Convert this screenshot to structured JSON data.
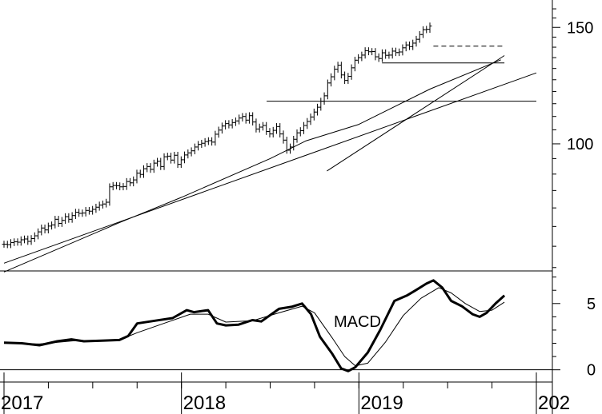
{
  "chart_data": [
    {
      "type": "ohlc",
      "title": "",
      "x_range": [
        2017.0,
        2020.0
      ],
      "y_scale": "log",
      "ylim": [
        63,
        165
      ],
      "y_ticks": [
        {
          "value": 100,
          "label": "100"
        },
        {
          "value": 150,
          "label": "150"
        }
      ],
      "series": [
        {
          "role": "price_bars",
          "x_start": 2017.0,
          "x_step": 0.0192,
          "closes": [
            70.5,
            70.4,
            70.9,
            71.1,
            71.0,
            71.6,
            71.8,
            71.2,
            71.9,
            72.6,
            73.6,
            74.6,
            74.1,
            75.1,
            75.4,
            76.9,
            75.8,
            76.6,
            77.6,
            76.9,
            77.9,
            78.8,
            78.5,
            78.6,
            79.3,
            79.1,
            79.6,
            80.2,
            80.8,
            81.1,
            81.6,
            86.1,
            86.5,
            86.4,
            86.1,
            86.2,
            87.7,
            87.3,
            88.2,
            90.3,
            89.9,
            91.7,
            92.4,
            91.5,
            93.5,
            94.1,
            92.4,
            95.6,
            95.8,
            94.5,
            96.1,
            93.1,
            94.6,
            96.2,
            96.9,
            97.6,
            98.9,
            99.8,
            100.2,
            100.8,
            101.1,
            100.6,
            103.4,
            104.9,
            106.4,
            107.3,
            106.8,
            107.7,
            108.3,
            109.4,
            110.0,
            108.6,
            110.3,
            107.9,
            105.3,
            106.0,
            106.6,
            104.4,
            103.5,
            104.8,
            106.2,
            103.5,
            101.3,
            97.8,
            98.9,
            101.6,
            103.9,
            104.7,
            106.6,
            108.1,
            109.8,
            111.7,
            113.6,
            116.0,
            118.2,
            123.6,
            126.3,
            129.7,
            131.5,
            127.1,
            124.7,
            126.5,
            130.3,
            133.8,
            135.0,
            136.2,
            138.3,
            137.8,
            137.9,
            135.4,
            134.6,
            137.3,
            136.1,
            136.2,
            138.1,
            137.4,
            137.7,
            139.7,
            141.1,
            140.3,
            142.0,
            143.9,
            146.3,
            148.8,
            149.0,
            150.7
          ]
        },
        {
          "role": "long_moving_average",
          "values": [
            {
              "x": 2017.0,
              "y": 64.0
            },
            {
              "x": 2017.65,
              "y": 76.0
            },
            {
              "x": 2018.0,
              "y": 83.0
            },
            {
              "x": 2018.5,
              "y": 95.0
            },
            {
              "x": 2018.7,
              "y": 101.0
            },
            {
              "x": 2019.0,
              "y": 107.0
            },
            {
              "x": 2019.4,
              "y": 121.0
            },
            {
              "x": 2019.8,
              "y": 134.0
            }
          ]
        },
        {
          "role": "trendline_long",
          "values": [
            {
              "x": 2017.0,
              "y": 66.0
            },
            {
              "x": 2020.0,
              "y": 128.0
            }
          ]
        },
        {
          "role": "trendline_steep",
          "values": [
            {
              "x": 2018.82,
              "y": 91.0
            },
            {
              "x": 2019.82,
              "y": 136.0
            }
          ]
        },
        {
          "role": "horizontal_resistance",
          "values": [
            {
              "x": 2018.48,
              "y": 116.0
            },
            {
              "x": 2020.0,
              "y": 116.0
            }
          ]
        },
        {
          "role": "horizontal_upper",
          "values": [
            {
              "x": 2019.13,
              "y": 132.5
            },
            {
              "x": 2019.82,
              "y": 132.5
            }
          ]
        },
        {
          "role": "horizontal_dashed",
          "values": [
            {
              "x": 2019.42,
              "y": 140.5
            },
            {
              "x": 2019.82,
              "y": 140.5
            }
          ]
        }
      ]
    },
    {
      "type": "line",
      "title": "MACD",
      "x_range": [
        2017.0,
        2020.0
      ],
      "ylim": [
        -0.2,
        7.4
      ],
      "y_ticks": [
        {
          "value": 0,
          "label": "0"
        },
        {
          "value": 5,
          "label": "5"
        }
      ],
      "series": [
        {
          "role": "macd",
          "values": [
            {
              "x": 2017.0,
              "y": 2.05
            },
            {
              "x": 2017.1,
              "y": 2.0
            },
            {
              "x": 2017.2,
              "y": 1.85
            },
            {
              "x": 2017.3,
              "y": 2.15
            },
            {
              "x": 2017.38,
              "y": 2.3
            },
            {
              "x": 2017.45,
              "y": 2.15
            },
            {
              "x": 2017.55,
              "y": 2.2
            },
            {
              "x": 2017.65,
              "y": 2.25
            },
            {
              "x": 2017.7,
              "y": 2.55
            },
            {
              "x": 2017.75,
              "y": 3.5
            },
            {
              "x": 2017.85,
              "y": 3.7
            },
            {
              "x": 2017.95,
              "y": 3.9
            },
            {
              "x": 2018.03,
              "y": 4.5
            },
            {
              "x": 2018.07,
              "y": 4.35
            },
            {
              "x": 2018.15,
              "y": 4.5
            },
            {
              "x": 2018.2,
              "y": 3.5
            },
            {
              "x": 2018.25,
              "y": 3.35
            },
            {
              "x": 2018.32,
              "y": 3.4
            },
            {
              "x": 2018.4,
              "y": 3.75
            },
            {
              "x": 2018.45,
              "y": 3.65
            },
            {
              "x": 2018.55,
              "y": 4.6
            },
            {
              "x": 2018.62,
              "y": 4.75
            },
            {
              "x": 2018.68,
              "y": 5.0
            },
            {
              "x": 2018.73,
              "y": 4.2
            },
            {
              "x": 2018.78,
              "y": 2.5
            },
            {
              "x": 2018.85,
              "y": 1.2
            },
            {
              "x": 2018.9,
              "y": 0.1
            },
            {
              "x": 2018.94,
              "y": -0.1
            },
            {
              "x": 2018.98,
              "y": 0.2
            },
            {
              "x": 2019.05,
              "y": 1.3
            },
            {
              "x": 2019.12,
              "y": 3.0
            },
            {
              "x": 2019.2,
              "y": 5.2
            },
            {
              "x": 2019.27,
              "y": 5.6
            },
            {
              "x": 2019.32,
              "y": 6.0
            },
            {
              "x": 2019.38,
              "y": 6.5
            },
            {
              "x": 2019.42,
              "y": 6.75
            },
            {
              "x": 2019.47,
              "y": 6.2
            },
            {
              "x": 2019.52,
              "y": 5.2
            },
            {
              "x": 2019.58,
              "y": 4.8
            },
            {
              "x": 2019.64,
              "y": 4.2
            },
            {
              "x": 2019.68,
              "y": 4.0
            },
            {
              "x": 2019.72,
              "y": 4.3
            },
            {
              "x": 2019.77,
              "y": 5.0
            },
            {
              "x": 2019.82,
              "y": 5.6
            }
          ]
        },
        {
          "role": "signal",
          "values": [
            {
              "x": 2017.0,
              "y": 2.0
            },
            {
              "x": 2017.2,
              "y": 1.95
            },
            {
              "x": 2017.4,
              "y": 2.2
            },
            {
              "x": 2017.65,
              "y": 2.25
            },
            {
              "x": 2017.75,
              "y": 2.8
            },
            {
              "x": 2017.9,
              "y": 3.5
            },
            {
              "x": 2018.05,
              "y": 4.2
            },
            {
              "x": 2018.15,
              "y": 4.2
            },
            {
              "x": 2018.25,
              "y": 3.6
            },
            {
              "x": 2018.4,
              "y": 3.7
            },
            {
              "x": 2018.55,
              "y": 4.3
            },
            {
              "x": 2018.68,
              "y": 4.8
            },
            {
              "x": 2018.75,
              "y": 4.3
            },
            {
              "x": 2018.85,
              "y": 2.4
            },
            {
              "x": 2018.92,
              "y": 1.0
            },
            {
              "x": 2018.98,
              "y": 0.3
            },
            {
              "x": 2019.05,
              "y": 0.5
            },
            {
              "x": 2019.15,
              "y": 2.1
            },
            {
              "x": 2019.25,
              "y": 4.1
            },
            {
              "x": 2019.35,
              "y": 5.4
            },
            {
              "x": 2019.45,
              "y": 6.2
            },
            {
              "x": 2019.52,
              "y": 5.8
            },
            {
              "x": 2019.6,
              "y": 5.0
            },
            {
              "x": 2019.68,
              "y": 4.4
            },
            {
              "x": 2019.75,
              "y": 4.5
            },
            {
              "x": 2019.82,
              "y": 5.1
            }
          ]
        }
      ]
    }
  ],
  "x_axis": {
    "tick_labels": [
      "2017",
      "2018",
      "2019",
      "202"
    ]
  }
}
